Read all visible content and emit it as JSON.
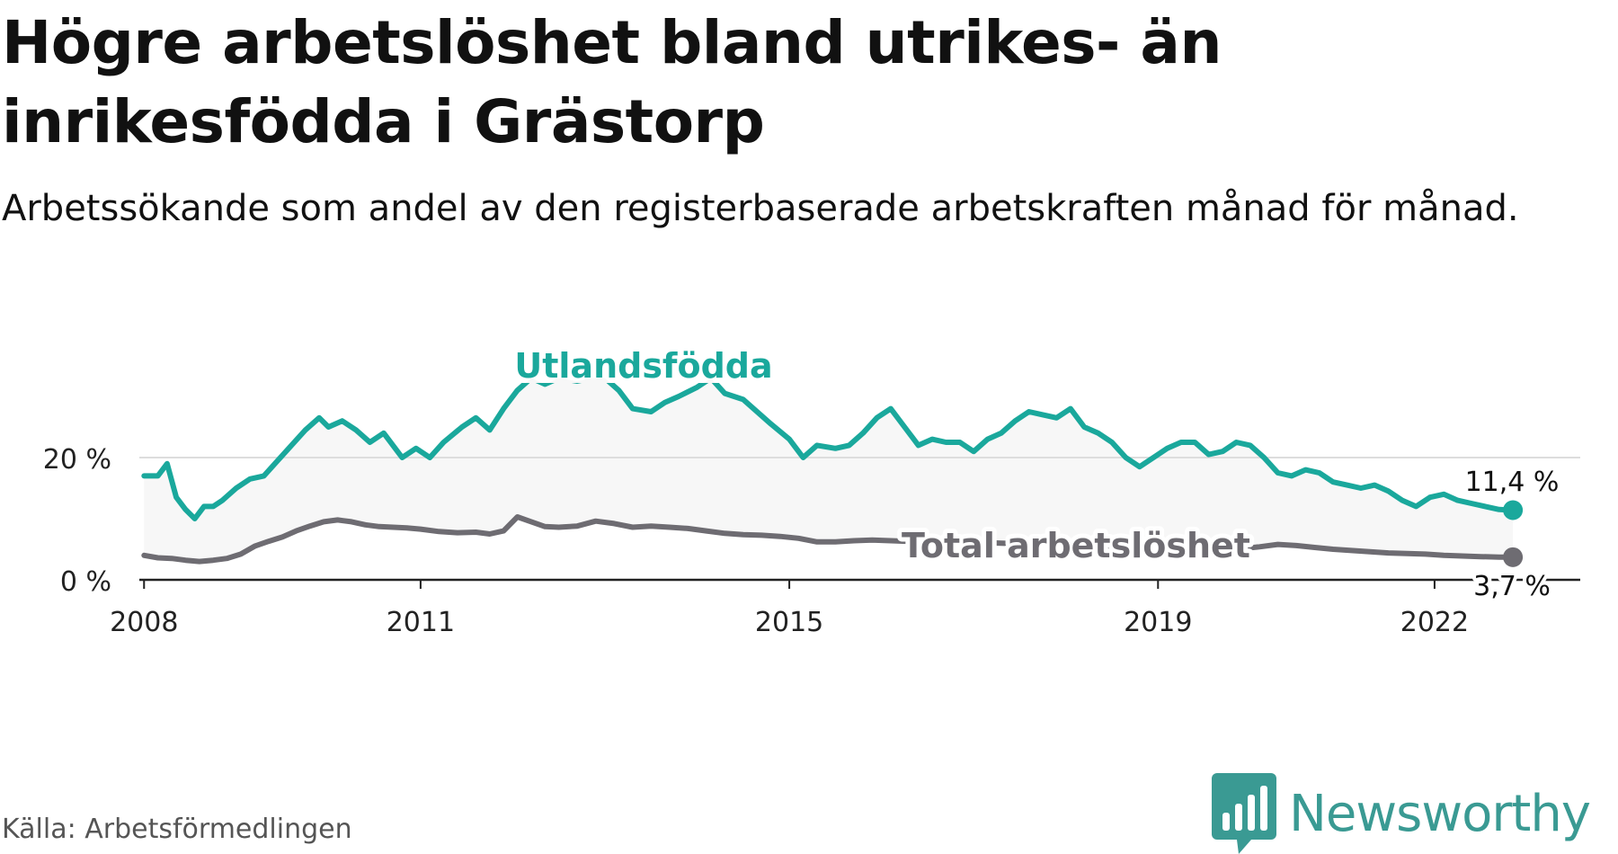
{
  "title": "Högre arbetslöshet bland utrikes- än inrikesfödda i Grästorp",
  "subtitle": "Arbetssökande som andel av den registerbaserade arbetskraften månad för månad.",
  "source": "Källa: Arbetsförmedlingen",
  "brand": "Newsworthy",
  "colors": {
    "foreign": "#1aa89c",
    "total": "#6e6c72",
    "band": "#f7f7f7",
    "grid": "#dddddd",
    "axis": "#222222",
    "brand": "#3a9a93"
  },
  "chart_data": {
    "type": "line",
    "title": "Högre arbetslöshet bland utrikes- än inrikesfödda i Grästorp",
    "xlabel": "",
    "ylabel": "",
    "xlim": [
      2007.9,
      2023.6
    ],
    "ylim": [
      0,
      33
    ],
    "y_ticks": [
      {
        "value": 0,
        "label": "0 %"
      },
      {
        "value": 20,
        "label": "20 %"
      }
    ],
    "x_ticks": [
      {
        "value": 2008,
        "label": "2008"
      },
      {
        "value": 2011,
        "label": "2011"
      },
      {
        "value": 2015,
        "label": "2015"
      },
      {
        "value": 2019,
        "label": "2019"
      },
      {
        "value": 2022,
        "label": "2022"
      }
    ],
    "series": [
      {
        "name": "Utlandsfödda",
        "label": "Utlandsfödda",
        "end_label": "11,4 %",
        "x": [
          2008.0,
          2008.15,
          2008.25,
          2008.35,
          2008.45,
          2008.55,
          2008.65,
          2008.75,
          2008.85,
          2009.0,
          2009.15,
          2009.3,
          2009.45,
          2009.6,
          2009.75,
          2009.9,
          2010.0,
          2010.15,
          2010.3,
          2010.45,
          2010.6,
          2010.8,
          2010.95,
          2011.1,
          2011.25,
          2011.45,
          2011.6,
          2011.75,
          2011.9,
          2012.05,
          2012.2,
          2012.35,
          2012.5,
          2012.7,
          2012.85,
          2013.0,
          2013.15,
          2013.3,
          2013.5,
          2013.65,
          2013.8,
          2014.0,
          2014.15,
          2014.3,
          2014.5,
          2014.65,
          2014.8,
          2015.0,
          2015.15,
          2015.3,
          2015.5,
          2015.65,
          2015.8,
          2015.95,
          2016.1,
          2016.25,
          2016.4,
          2016.55,
          2016.7,
          2016.85,
          2017.0,
          2017.15,
          2017.3,
          2017.45,
          2017.6,
          2017.75,
          2017.9,
          2018.05,
          2018.2,
          2018.35,
          2018.5,
          2018.65,
          2018.8,
          2018.95,
          2019.1,
          2019.25,
          2019.4,
          2019.55,
          2019.7,
          2019.85,
          2020.0,
          2020.15,
          2020.3,
          2020.45,
          2020.6,
          2020.75,
          2020.9,
          2021.05,
          2021.2,
          2021.35,
          2021.5,
          2021.65,
          2021.8,
          2021.95,
          2022.1,
          2022.25,
          2022.4,
          2022.55,
          2022.7,
          2022.85
        ],
        "values": [
          17,
          17,
          19,
          13.5,
          11.5,
          10,
          12,
          12,
          13,
          15,
          16.5,
          17,
          19.5,
          22,
          24.5,
          26.5,
          25,
          26,
          24.5,
          22.5,
          24,
          20,
          21.5,
          20,
          22.5,
          25,
          26.5,
          24.5,
          28,
          31,
          33,
          32,
          33,
          32.5,
          33,
          33,
          31,
          28,
          27.5,
          29,
          30,
          31.5,
          33,
          30.5,
          29.5,
          27.5,
          25.5,
          23,
          20,
          22,
          21.5,
          22,
          24,
          26.5,
          28,
          25,
          22,
          23,
          22.5,
          22.5,
          21,
          23,
          24,
          26,
          27.5,
          27,
          26.5,
          28,
          25,
          24,
          22.5,
          20,
          18.5,
          20,
          21.5,
          22.5,
          22.5,
          20.5,
          21,
          22.5,
          22,
          20,
          17.5,
          17,
          18,
          17.5,
          16,
          15.5,
          15,
          15.5,
          14.5,
          13,
          12,
          13.5,
          14,
          13,
          12.5,
          12,
          11.5,
          11.4
        ]
      },
      {
        "name": "Total arbetslöshet",
        "label": "Total arbetslöshet",
        "end_label": "3,7 %",
        "x": [
          2008.0,
          2008.15,
          2008.3,
          2008.45,
          2008.6,
          2008.75,
          2008.9,
          2009.05,
          2009.2,
          2009.35,
          2009.5,
          2009.65,
          2009.8,
          2009.95,
          2010.1,
          2010.25,
          2010.4,
          2010.55,
          2010.7,
          2010.85,
          2011.0,
          2011.2,
          2011.4,
          2011.6,
          2011.75,
          2011.9,
          2012.05,
          2012.2,
          2012.35,
          2012.5,
          2012.7,
          2012.9,
          2013.1,
          2013.3,
          2013.5,
          2013.7,
          2013.9,
          2014.1,
          2014.3,
          2014.5,
          2014.7,
          2014.9,
          2015.1,
          2015.3,
          2015.5,
          2015.7,
          2015.9,
          2016.1,
          2016.3,
          2016.5,
          2016.7,
          2016.9,
          2017.1,
          2017.3,
          2017.5,
          2017.7,
          2017.9,
          2018.1,
          2018.3,
          2018.5,
          2018.7,
          2018.9,
          2019.1,
          2019.3,
          2019.5,
          2019.7,
          2019.9,
          2020.1,
          2020.3,
          2020.5,
          2020.7,
          2020.9,
          2021.1,
          2021.3,
          2021.5,
          2021.7,
          2021.9,
          2022.1,
          2022.3,
          2022.5,
          2022.7,
          2022.85
        ],
        "values": [
          4,
          3.6,
          3.5,
          3.2,
          3.0,
          3.2,
          3.5,
          4.2,
          5.5,
          6.3,
          7.0,
          8.0,
          8.8,
          9.5,
          9.8,
          9.5,
          9.0,
          8.7,
          8.6,
          8.5,
          8.3,
          7.9,
          7.7,
          7.8,
          7.5,
          8.0,
          10.3,
          9.5,
          8.7,
          8.6,
          8.8,
          9.6,
          9.2,
          8.6,
          8.8,
          8.6,
          8.4,
          8.0,
          7.6,
          7.4,
          7.3,
          7.1,
          6.8,
          6.2,
          6.2,
          6.4,
          6.5,
          6.4,
          6.3,
          6.2,
          6.3,
          6.2,
          6.1,
          6.0,
          5.9,
          5.8,
          5.8,
          5.6,
          5.5,
          5.5,
          5.4,
          5.3,
          5.2,
          5.3,
          5.1,
          5.0,
          5.1,
          5.4,
          5.8,
          5.6,
          5.3,
          5.0,
          4.8,
          4.6,
          4.4,
          4.3,
          4.2,
          4.0,
          3.9,
          3.8,
          3.7,
          3.7
        ]
      }
    ]
  }
}
